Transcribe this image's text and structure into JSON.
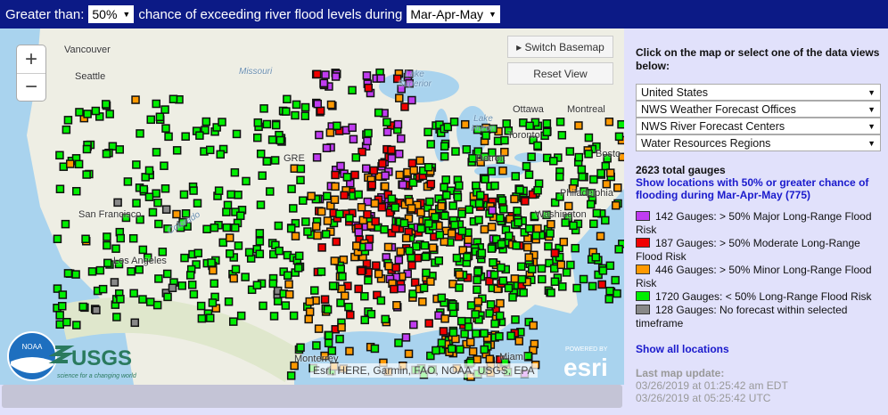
{
  "topbar": {
    "prefix": "Greater than:",
    "threshold": "50%",
    "middle": "chance of exceeding river flood levels during",
    "period": "Mar-Apr-May"
  },
  "map": {
    "zoom_in": "+",
    "zoom_out": "−",
    "switch_basemap": "▸ Switch Basemap",
    "reset_view": "Reset View",
    "labels": {
      "vancouver": "Vancouver",
      "seattle": "Seattle",
      "lake_superior": "Lake Superior",
      "lake_huron": "Lake Huron",
      "ottawa": "Ottawa",
      "montreal": "Montreal",
      "toronto": "Toronto",
      "detroit": "Detroit",
      "boston": "Bosto",
      "philadelphia": "Philadelphia",
      "washington": "Washington",
      "san_francisco": "San Francisco",
      "los_angeles": "Los Angeles",
      "monterrey": "Monterrey",
      "miami": "Miami",
      "missouri": "Missouri",
      "colorado": "Colorado",
      "great": "GRE"
    },
    "attribution": "Esri, HERE, Garmin, FAO, NOAA, USGS, EPA",
    "logos": {
      "noaa": "NOAA",
      "usgs": "USGS",
      "usgs_tagline": "science for a changing world",
      "esri_powered": "POWERED BY",
      "esri": "esri"
    }
  },
  "panel": {
    "intro": "Click on the map or select one of the data views below:",
    "selects": [
      "United States",
      "NWS Weather Forecast Offices",
      "NWS River Forecast Centers",
      "Water Resources Regions"
    ],
    "total": "2623 total gauges",
    "show_link": "Show locations with 50% or greater chance of flooding during Mar-Apr-May (775)",
    "legend": [
      {
        "color": "#c03cf0",
        "text": "142 Gauges: > 50% Major Long-Range Flood Risk"
      },
      {
        "color": "#f00000",
        "text": "187 Gauges: > 50% Moderate Long-Range Flood Risk"
      },
      {
        "color": "#ff9900",
        "text": "446 Gauges: > 50% Minor Long-Range Flood Risk"
      },
      {
        "color": "#00ee00",
        "text": "1720 Gauges: < 50% Long-Range Flood Risk"
      },
      {
        "color": "#888888",
        "text": "128 Gauges: No forecast within selected timeframe"
      }
    ],
    "show_all": "Show all locations",
    "update_label": "Last map update:",
    "update_local": "03/26/2019 at 01:25:42 am EDT",
    "update_utc": "03/26/2019 at 05:25:42 UTC"
  }
}
